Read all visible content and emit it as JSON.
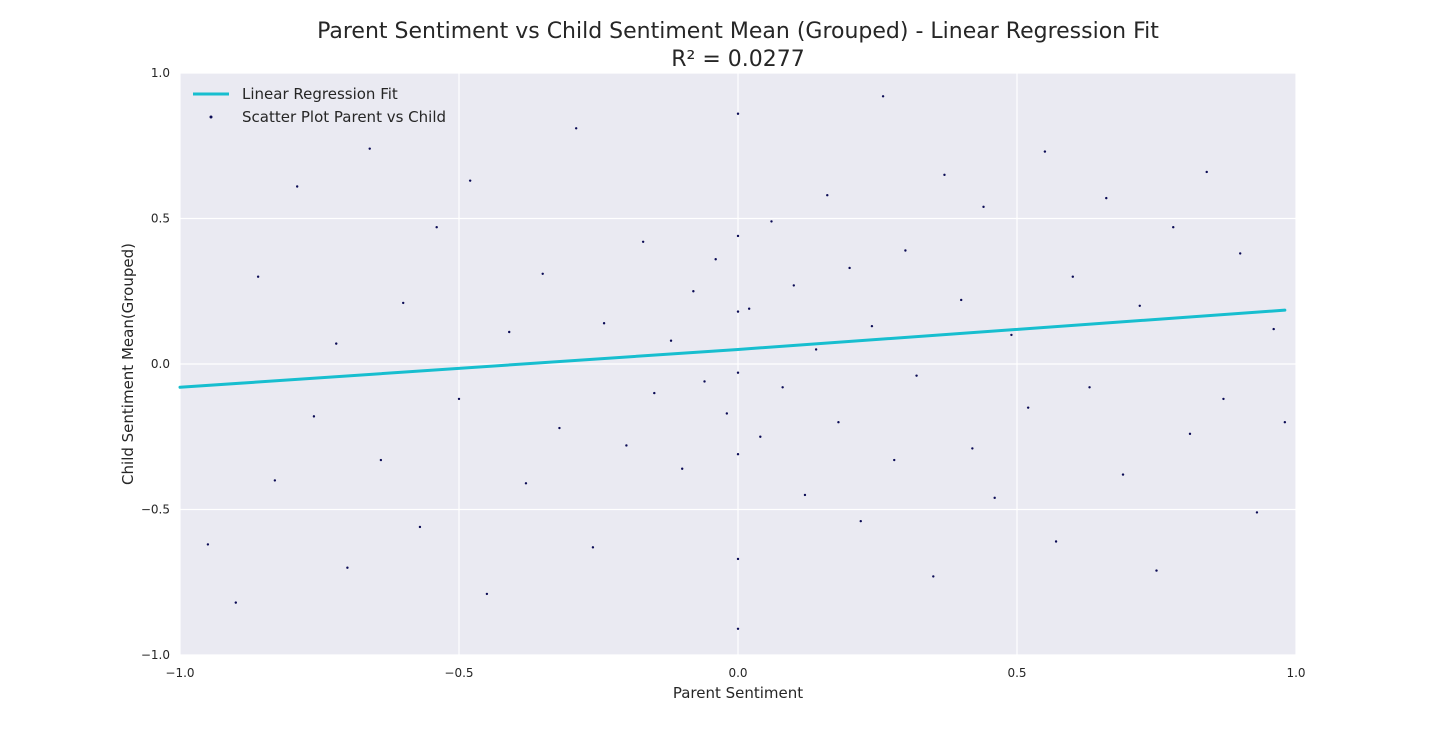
{
  "chart_data": {
    "type": "scatter",
    "title": "Parent Sentiment vs Child Sentiment Mean (Grouped) - Linear Regression Fit",
    "subtitle": "R² = 0.0277",
    "xlabel": "Parent Sentiment",
    "ylabel": "Child Sentiment Mean(Grouped)",
    "xlim": [
      -1.0,
      1.0
    ],
    "ylim": [
      -1.0,
      1.0
    ],
    "xticks": [
      -1.0,
      -0.5,
      0.0,
      0.5,
      1.0
    ],
    "xtick_labels": [
      "−1.0",
      "−0.5",
      "0.0",
      "0.5",
      "1.0"
    ],
    "yticks": [
      -1.0,
      -0.5,
      0.0,
      0.5,
      1.0
    ],
    "ytick_labels": [
      "−1.0",
      "−0.5",
      "0.0",
      "0.5",
      "1.0"
    ],
    "grid": true,
    "legend": {
      "placement": "top-left",
      "entries": [
        {
          "label": "Linear Regression Fit",
          "type": "line",
          "color": "#17becf"
        },
        {
          "label": "Scatter Plot Parent vs Child",
          "type": "marker",
          "color": "#0b0b55"
        }
      ]
    },
    "regression_line": {
      "name": "Linear Regression Fit",
      "color": "#17becf",
      "points": [
        {
          "x": -1.0,
          "y": -0.08
        },
        {
          "x": 0.0,
          "y": 0.05
        },
        {
          "x": 0.98,
          "y": 0.185
        }
      ]
    },
    "series": [
      {
        "name": "Scatter Plot Parent vs Child",
        "color": "#0b0b55",
        "points": [
          {
            "x": -0.95,
            "y": -0.62
          },
          {
            "x": -0.9,
            "y": -0.82
          },
          {
            "x": -0.86,
            "y": 0.3
          },
          {
            "x": -0.83,
            "y": -0.4
          },
          {
            "x": -0.79,
            "y": 0.61
          },
          {
            "x": -0.76,
            "y": -0.18
          },
          {
            "x": -0.72,
            "y": 0.07
          },
          {
            "x": -0.7,
            "y": -0.7
          },
          {
            "x": -0.66,
            "y": 0.74
          },
          {
            "x": -0.64,
            "y": -0.33
          },
          {
            "x": -0.6,
            "y": 0.21
          },
          {
            "x": -0.57,
            "y": -0.56
          },
          {
            "x": -0.54,
            "y": 0.47
          },
          {
            "x": -0.5,
            "y": -0.12
          },
          {
            "x": -0.48,
            "y": 0.63
          },
          {
            "x": -0.45,
            "y": -0.79
          },
          {
            "x": -0.41,
            "y": 0.11
          },
          {
            "x": -0.38,
            "y": -0.41
          },
          {
            "x": -0.35,
            "y": 0.31
          },
          {
            "x": -0.32,
            "y": -0.22
          },
          {
            "x": -0.29,
            "y": 0.81
          },
          {
            "x": -0.26,
            "y": -0.63
          },
          {
            "x": -0.24,
            "y": 0.14
          },
          {
            "x": -0.2,
            "y": -0.28
          },
          {
            "x": -0.17,
            "y": 0.42
          },
          {
            "x": -0.15,
            "y": -0.1
          },
          {
            "x": -0.12,
            "y": 0.08
          },
          {
            "x": -0.1,
            "y": -0.36
          },
          {
            "x": -0.08,
            "y": 0.25
          },
          {
            "x": -0.06,
            "y": -0.06
          },
          {
            "x": -0.04,
            "y": 0.36
          },
          {
            "x": -0.02,
            "y": -0.17
          },
          {
            "x": 0.0,
            "y": 0.86
          },
          {
            "x": 0.0,
            "y": 0.44
          },
          {
            "x": 0.0,
            "y": 0.18
          },
          {
            "x": 0.0,
            "y": -0.03
          },
          {
            "x": 0.0,
            "y": -0.31
          },
          {
            "x": 0.0,
            "y": -0.67
          },
          {
            "x": 0.0,
            "y": -0.91
          },
          {
            "x": 0.02,
            "y": 0.19
          },
          {
            "x": 0.04,
            "y": -0.25
          },
          {
            "x": 0.06,
            "y": 0.49
          },
          {
            "x": 0.08,
            "y": -0.08
          },
          {
            "x": 0.1,
            "y": 0.27
          },
          {
            "x": 0.12,
            "y": -0.45
          },
          {
            "x": 0.14,
            "y": 0.05
          },
          {
            "x": 0.16,
            "y": 0.58
          },
          {
            "x": 0.18,
            "y": -0.2
          },
          {
            "x": 0.2,
            "y": 0.33
          },
          {
            "x": 0.22,
            "y": -0.54
          },
          {
            "x": 0.24,
            "y": 0.13
          },
          {
            "x": 0.26,
            "y": 0.92
          },
          {
            "x": 0.28,
            "y": -0.33
          },
          {
            "x": 0.3,
            "y": 0.39
          },
          {
            "x": 0.32,
            "y": -0.04
          },
          {
            "x": 0.35,
            "y": -0.73
          },
          {
            "x": 0.37,
            "y": 0.65
          },
          {
            "x": 0.4,
            "y": 0.22
          },
          {
            "x": 0.42,
            "y": -0.29
          },
          {
            "x": 0.44,
            "y": 0.54
          },
          {
            "x": 0.46,
            "y": -0.46
          },
          {
            "x": 0.49,
            "y": 0.1
          },
          {
            "x": 0.52,
            "y": -0.15
          },
          {
            "x": 0.55,
            "y": 0.73
          },
          {
            "x": 0.57,
            "y": -0.61
          },
          {
            "x": 0.6,
            "y": 0.3
          },
          {
            "x": 0.63,
            "y": -0.08
          },
          {
            "x": 0.66,
            "y": 0.57
          },
          {
            "x": 0.69,
            "y": -0.38
          },
          {
            "x": 0.72,
            "y": 0.2
          },
          {
            "x": 0.75,
            "y": -0.71
          },
          {
            "x": 0.78,
            "y": 0.47
          },
          {
            "x": 0.81,
            "y": -0.24
          },
          {
            "x": 0.84,
            "y": 0.66
          },
          {
            "x": 0.87,
            "y": -0.12
          },
          {
            "x": 0.9,
            "y": 0.38
          },
          {
            "x": 0.93,
            "y": -0.51
          },
          {
            "x": 0.96,
            "y": 0.12
          },
          {
            "x": 0.98,
            "y": -0.2
          }
        ]
      }
    ]
  }
}
